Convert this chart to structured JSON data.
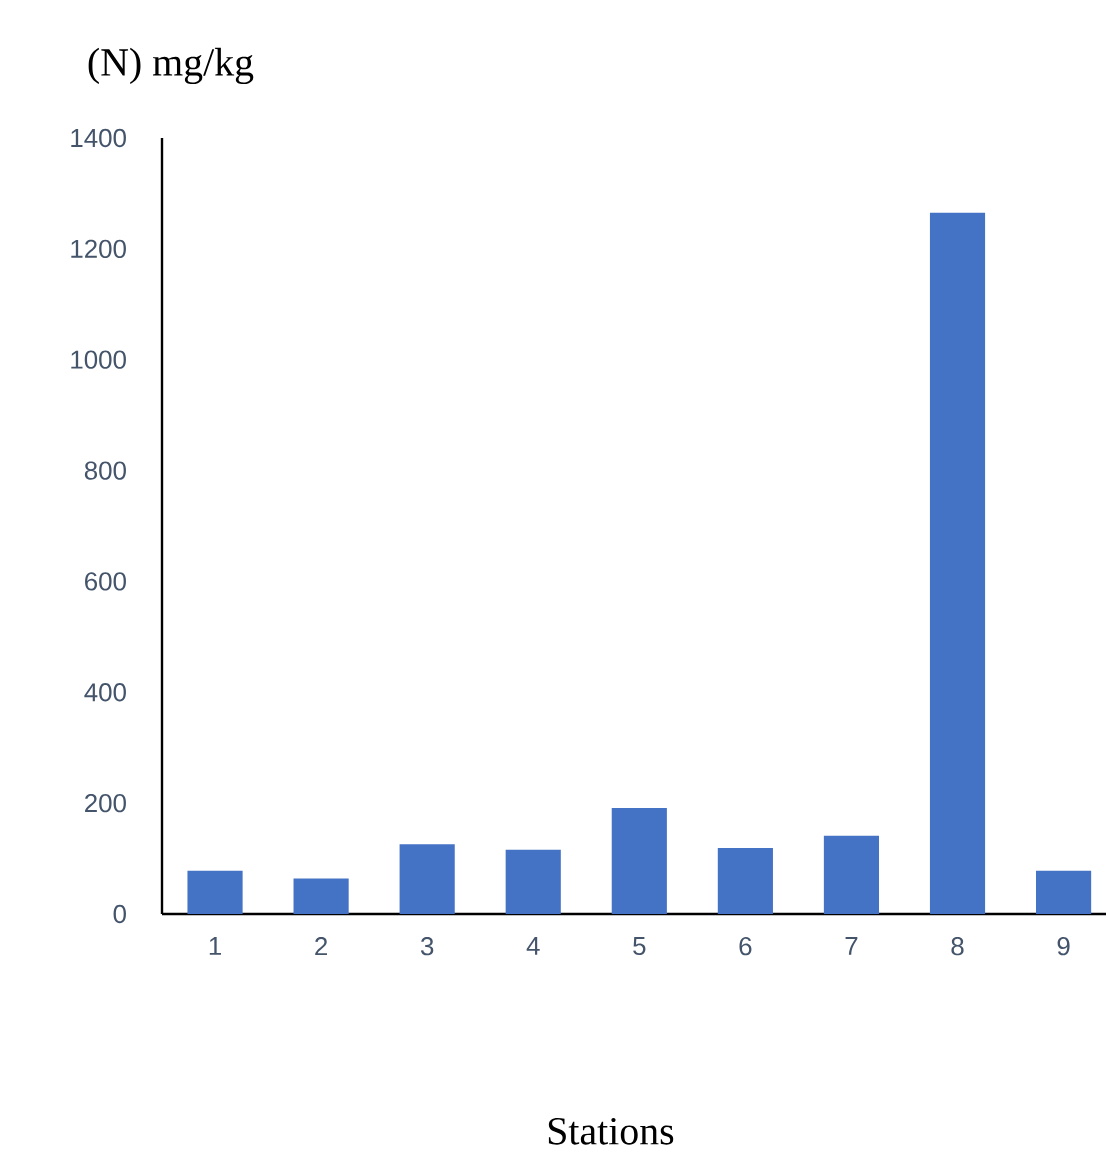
{
  "chart_data": {
    "type": "bar",
    "title": "(N) mg/kg",
    "xlabel": "Stations",
    "categories": [
      "1",
      "2",
      "3",
      "4",
      "5",
      "6",
      "7",
      "8",
      "9"
    ],
    "values": [
      78,
      64,
      126,
      116,
      191,
      119,
      141,
      1265,
      78
    ],
    "color": "#4472c4",
    "ylim": [
      0,
      1400
    ],
    "yticks": [
      0,
      200,
      400,
      600,
      800,
      1000,
      1200,
      1400
    ]
  }
}
